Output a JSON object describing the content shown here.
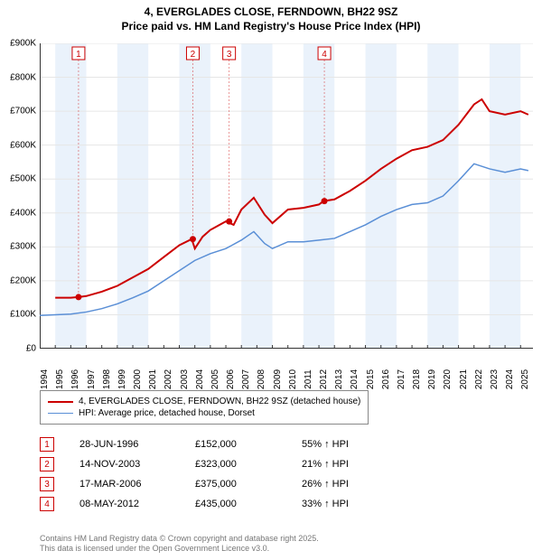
{
  "title_line1": "4, EVERGLADES CLOSE, FERNDOWN, BH22 9SZ",
  "title_line2": "Price paid vs. HM Land Registry's House Price Index (HPI)",
  "chart": {
    "type": "line",
    "background_color": "#ffffff",
    "grid_color": "#e6e6e6",
    "xlim": [
      1994,
      2025.8
    ],
    "ylim": [
      0,
      900000
    ],
    "ytick_step": 100000,
    "yticks": [
      "£0",
      "£100K",
      "£200K",
      "£300K",
      "£400K",
      "£500K",
      "£600K",
      "£700K",
      "£800K",
      "£900K"
    ],
    "xticks": [
      1994,
      1995,
      1996,
      1997,
      1998,
      1999,
      2000,
      2001,
      2002,
      2003,
      2004,
      2005,
      2006,
      2007,
      2008,
      2009,
      2010,
      2011,
      2012,
      2013,
      2014,
      2015,
      2016,
      2017,
      2018,
      2019,
      2020,
      2021,
      2022,
      2023,
      2024,
      2025
    ],
    "x_label_fontsize": 10,
    "y_label_fontsize": 10,
    "shaded_bands": {
      "color": "#eaf2fb",
      "ranges": [
        [
          1995,
          1997
        ],
        [
          1999,
          2001
        ],
        [
          2003,
          2005
        ],
        [
          2007,
          2009
        ],
        [
          2011,
          2013
        ],
        [
          2015,
          2017
        ],
        [
          2019,
          2021
        ],
        [
          2023,
          2025
        ]
      ]
    },
    "series": [
      {
        "name": "price_paid",
        "label": "4, EVERGLADES CLOSE, FERNDOWN, BH22 9SZ (detached house)",
        "color": "#cc0000",
        "line_width": 2,
        "points": [
          [
            1995.0,
            150000
          ],
          [
            1996.0,
            150000
          ],
          [
            1996.5,
            152000
          ],
          [
            1997.0,
            155000
          ],
          [
            1998.0,
            168000
          ],
          [
            1999.0,
            185000
          ],
          [
            2000.0,
            210000
          ],
          [
            2001.0,
            235000
          ],
          [
            2002.0,
            270000
          ],
          [
            2003.0,
            305000
          ],
          [
            2003.8,
            323000
          ],
          [
            2004.0,
            295000
          ],
          [
            2004.5,
            330000
          ],
          [
            2005.0,
            350000
          ],
          [
            2006.0,
            375000
          ],
          [
            2006.5,
            365000
          ],
          [
            2007.0,
            410000
          ],
          [
            2007.8,
            445000
          ],
          [
            2008.5,
            395000
          ],
          [
            2009.0,
            370000
          ],
          [
            2010.0,
            410000
          ],
          [
            2011.0,
            415000
          ],
          [
            2012.0,
            425000
          ],
          [
            2012.3,
            435000
          ],
          [
            2013.0,
            440000
          ],
          [
            2014.0,
            465000
          ],
          [
            2015.0,
            495000
          ],
          [
            2016.0,
            530000
          ],
          [
            2017.0,
            560000
          ],
          [
            2018.0,
            585000
          ],
          [
            2019.0,
            595000
          ],
          [
            2020.0,
            615000
          ],
          [
            2021.0,
            660000
          ],
          [
            2022.0,
            720000
          ],
          [
            2022.5,
            735000
          ],
          [
            2023.0,
            700000
          ],
          [
            2024.0,
            690000
          ],
          [
            2025.0,
            700000
          ],
          [
            2025.5,
            690000
          ]
        ]
      },
      {
        "name": "hpi",
        "label": "HPI: Average price, detached house, Dorset",
        "color": "#5a8fd6",
        "line_width": 1.5,
        "points": [
          [
            1994.0,
            98000
          ],
          [
            1995.0,
            100000
          ],
          [
            1996.0,
            102000
          ],
          [
            1997.0,
            108000
          ],
          [
            1998.0,
            118000
          ],
          [
            1999.0,
            132000
          ],
          [
            2000.0,
            150000
          ],
          [
            2001.0,
            170000
          ],
          [
            2002.0,
            200000
          ],
          [
            2003.0,
            230000
          ],
          [
            2004.0,
            260000
          ],
          [
            2005.0,
            280000
          ],
          [
            2006.0,
            295000
          ],
          [
            2007.0,
            320000
          ],
          [
            2007.8,
            345000
          ],
          [
            2008.5,
            310000
          ],
          [
            2009.0,
            295000
          ],
          [
            2010.0,
            315000
          ],
          [
            2011.0,
            315000
          ],
          [
            2012.0,
            320000
          ],
          [
            2013.0,
            325000
          ],
          [
            2014.0,
            345000
          ],
          [
            2015.0,
            365000
          ],
          [
            2016.0,
            390000
          ],
          [
            2017.0,
            410000
          ],
          [
            2018.0,
            425000
          ],
          [
            2019.0,
            430000
          ],
          [
            2020.0,
            450000
          ],
          [
            2021.0,
            495000
          ],
          [
            2022.0,
            545000
          ],
          [
            2023.0,
            530000
          ],
          [
            2024.0,
            520000
          ],
          [
            2025.0,
            530000
          ],
          [
            2025.5,
            525000
          ]
        ]
      }
    ],
    "sale_markers": [
      {
        "n": "1",
        "year": 1996.5,
        "value": 152000
      },
      {
        "n": "2",
        "year": 2003.87,
        "value": 323000
      },
      {
        "n": "3",
        "year": 2006.21,
        "value": 375000
      },
      {
        "n": "4",
        "year": 2012.35,
        "value": 435000
      }
    ],
    "marker_box_color": "#cc0000",
    "marker_dot_color": "#cc0000",
    "marker_dot_radius": 3.5
  },
  "legend": {
    "border_color": "#888888",
    "items": [
      {
        "color": "#cc0000",
        "width": 2,
        "label": "4, EVERGLADES CLOSE, FERNDOWN, BH22 9SZ (detached house)"
      },
      {
        "color": "#5a8fd6",
        "width": 1.5,
        "label": "HPI: Average price, detached house, Dorset"
      }
    ]
  },
  "sales": [
    {
      "n": "1",
      "date": "28-JUN-1996",
      "price": "£152,000",
      "delta": "55% ↑ HPI"
    },
    {
      "n": "2",
      "date": "14-NOV-2003",
      "price": "£323,000",
      "delta": "21% ↑ HPI"
    },
    {
      "n": "3",
      "date": "17-MAR-2006",
      "price": "£375,000",
      "delta": "26% ↑ HPI"
    },
    {
      "n": "4",
      "date": "08-MAY-2012",
      "price": "£435,000",
      "delta": "33% ↑ HPI"
    }
  ],
  "footer_line1": "Contains HM Land Registry data © Crown copyright and database right 2025.",
  "footer_line2": "This data is licensed under the Open Government Licence v3.0."
}
